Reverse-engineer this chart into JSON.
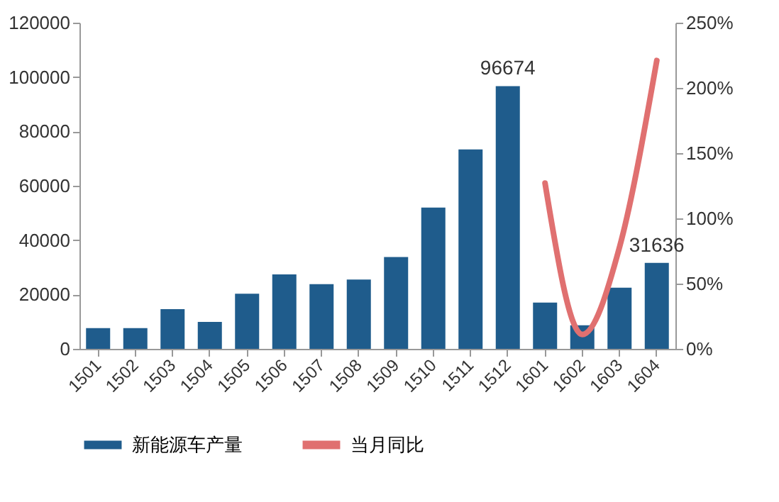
{
  "chart_data": {
    "type": "bar",
    "categories": [
      "1501",
      "1502",
      "1503",
      "1504",
      "1505",
      "1506",
      "1507",
      "1508",
      "1509",
      "1510",
      "1511",
      "1512",
      "1601",
      "1602",
      "1603",
      "1604"
    ],
    "series": [
      {
        "name": "新能源车产量",
        "color": "#1f5c8c",
        "values": [
          7600,
          7600,
          14600,
          9900,
          20300,
          27400,
          23800,
          25500,
          33800,
          52000,
          73400,
          96674,
          17000,
          8700,
          22500,
          31636
        ],
        "value_labels": [
          null,
          null,
          null,
          null,
          null,
          null,
          null,
          null,
          null,
          null,
          null,
          "96674",
          null,
          null,
          null,
          "31636"
        ]
      },
      {
        "name": "当月同比",
        "type": "line",
        "axis": "y2",
        "color": "#e07070",
        "values": [
          null,
          null,
          null,
          null,
          null,
          null,
          null,
          null,
          null,
          null,
          null,
          null,
          127,
          11,
          78,
          221
        ]
      }
    ],
    "ylim": [
      0,
      120000
    ],
    "yticks": [
      0,
      20000,
      40000,
      60000,
      80000,
      100000,
      120000
    ],
    "y2lim": [
      0,
      250
    ],
    "y2ticks": [
      {
        "value": 0,
        "label": "0%"
      },
      {
        "value": 50,
        "label": "50%"
      },
      {
        "value": 100,
        "label": "100%"
      },
      {
        "value": 150,
        "label": "150%"
      },
      {
        "value": 200,
        "label": "200%"
      },
      {
        "value": 250,
        "label": "250%"
      }
    ],
    "legend": "bottom"
  }
}
